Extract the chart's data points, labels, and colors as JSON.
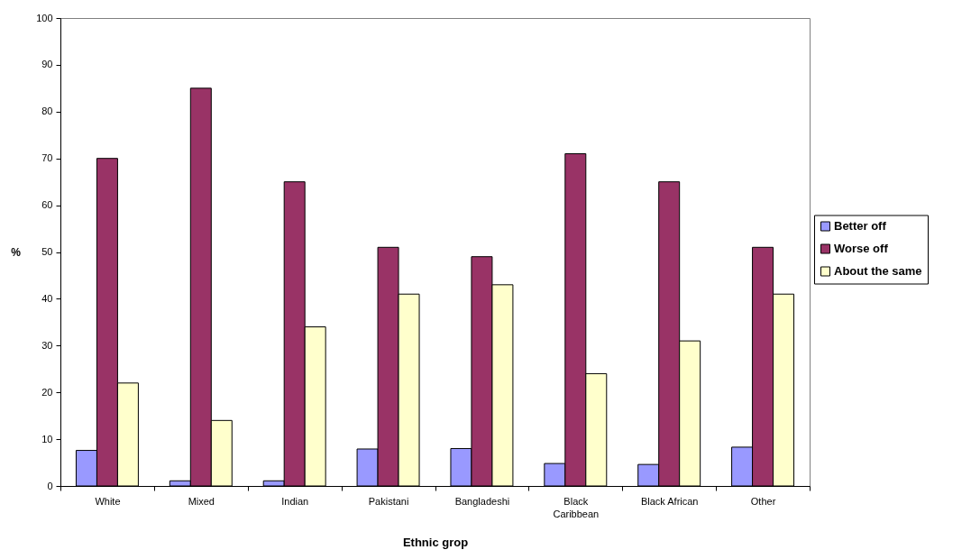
{
  "chart_data": {
    "type": "bar",
    "xlabel": "Ethnic grop",
    "ylabel": "%",
    "categories": [
      "White",
      "Mixed",
      "Indian",
      "Pakistani",
      "Bangladeshi",
      "Black Caribbean",
      "Black African",
      "Other"
    ],
    "series": [
      {
        "name": "Better off",
        "color": "#9999ff",
        "values": [
          7.6,
          1.1,
          1.1,
          7.9,
          8.0,
          4.8,
          4.6,
          8.3
        ]
      },
      {
        "name": "Worse off",
        "color": "#993366",
        "values": [
          70,
          85,
          65,
          51,
          49,
          71,
          65,
          51
        ]
      },
      {
        "name": "About the same",
        "color": "#ffffcc",
        "values": [
          22,
          14,
          34,
          41,
          43,
          24,
          31,
          41
        ]
      }
    ],
    "ylim": [
      0,
      100
    ],
    "yticks": [
      0,
      10,
      20,
      30,
      40,
      50,
      60,
      70,
      80,
      90,
      100
    ],
    "grid": false,
    "legend": "right"
  }
}
